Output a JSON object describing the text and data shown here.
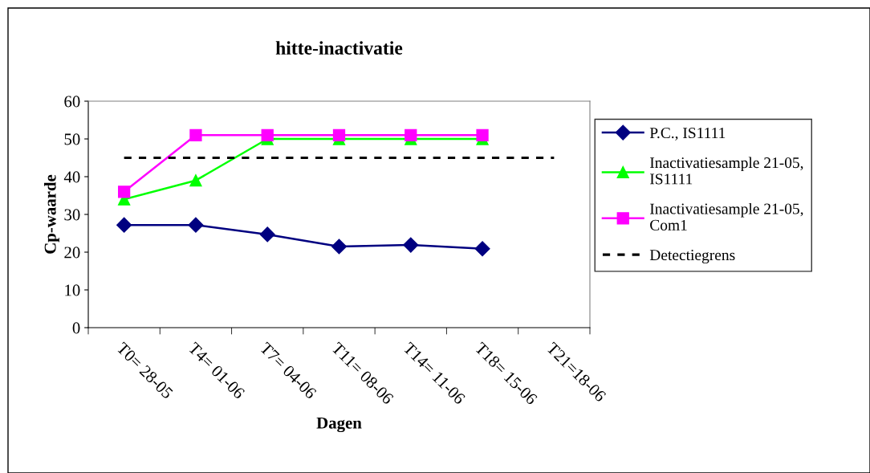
{
  "chart_data": {
    "type": "line",
    "title": "hitte-inactivatie",
    "xlabel": "Dagen",
    "ylabel": "Cp-waarde",
    "categories": [
      "T0= 28-05",
      "T4= 01-06",
      "T7= 04-06",
      "T11= 08-06",
      "T14= 11-06",
      "T18= 15-06",
      "T21=18-06"
    ],
    "series": [
      {
        "name": "P.C., IS1111",
        "color": "#000080",
        "marker": "diamond",
        "line_style": "solid",
        "values": [
          27.2,
          27.2,
          24.7,
          21.5,
          21.9,
          20.9,
          null
        ]
      },
      {
        "name": "Inactivatiesample 21-05, IS1111",
        "color": "#00ff00",
        "marker": "triangle",
        "line_style": "solid",
        "values": [
          34,
          39,
          50,
          50,
          50,
          50,
          null
        ]
      },
      {
        "name": "Inactivatiesample 21-05, Com1",
        "color": "#ff00ff",
        "marker": "square",
        "line_style": "solid",
        "values": [
          36,
          51,
          51,
          51,
          51,
          51,
          null
        ]
      },
      {
        "name": "Detectiegrens",
        "color": "#000000",
        "marker": "none",
        "line_style": "dotted",
        "values": [
          45,
          45,
          45,
          45,
          45,
          45,
          45
        ]
      }
    ],
    "ylim": [
      0,
      60
    ],
    "yticks": [
      0,
      10,
      20,
      30,
      40,
      50,
      60
    ],
    "grid": false,
    "legend": "right"
  }
}
